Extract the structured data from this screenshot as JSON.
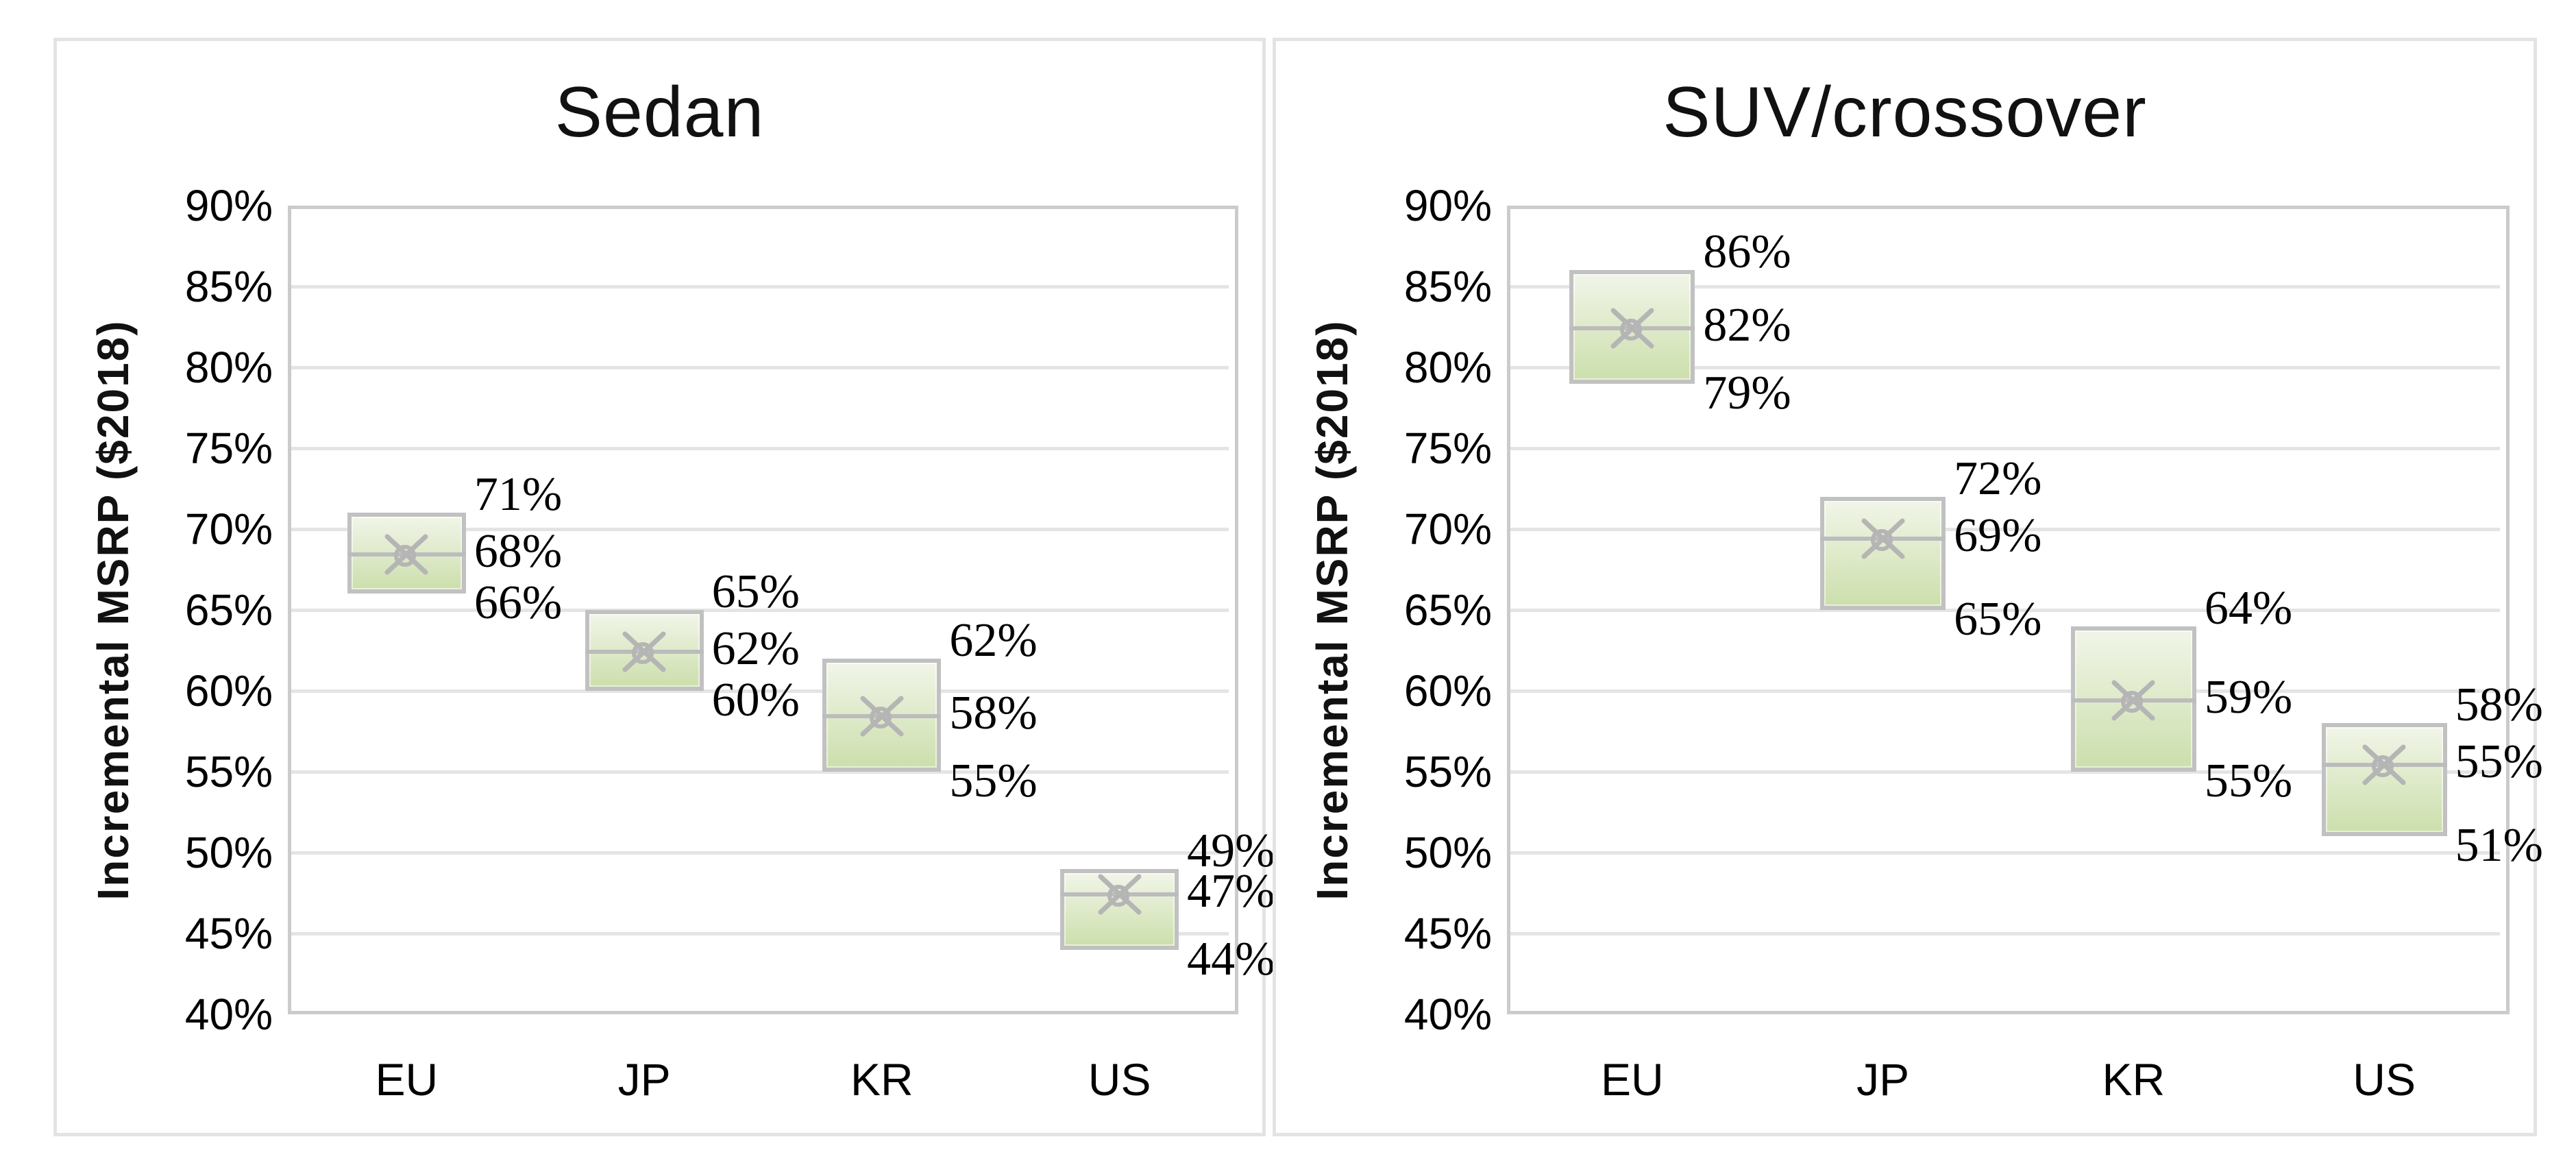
{
  "style": {
    "text_color": "#000000",
    "title_color": "#111111",
    "panel_border": "#e3e3e3",
    "plot_border": "#cbcbcb",
    "gridline": "#e4e4e4",
    "box_border": "#c1c1c1",
    "box_fill_top": "#f1f5e8",
    "box_fill_bottom": "#ccdfac",
    "median_line": "#bcbcbc",
    "mean_marker": "#b5b5b5"
  },
  "chart_data": [
    {
      "type": "box",
      "title": "Sedan",
      "xlabel": "",
      "ylabel": "Incremental MSRP ($2018)",
      "ylim": [
        40,
        90
      ],
      "ytick_step": 5,
      "ytick_labels": [
        "40%",
        "45%",
        "50%",
        "55%",
        "60%",
        "65%",
        "70%",
        "75%",
        "80%",
        "85%",
        "90%"
      ],
      "grid": true,
      "legend": "none",
      "categories": [
        "EU",
        "JP",
        "KR",
        "US"
      ],
      "series": [
        {
          "category": "EU",
          "max": 71,
          "mean": 68,
          "min": 66,
          "labels": {
            "max": "71%",
            "mean": "68%",
            "min": "66%"
          }
        },
        {
          "category": "JP",
          "max": 65,
          "mean": 62,
          "min": 60,
          "labels": {
            "max": "65%",
            "mean": "62%",
            "min": "60%"
          }
        },
        {
          "category": "KR",
          "max": 62,
          "mean": 58,
          "min": 55,
          "labels": {
            "max": "62%",
            "mean": "58%",
            "min": "55%"
          }
        },
        {
          "category": "US",
          "max": 49,
          "mean": 47,
          "min": 44,
          "labels": {
            "max": "49%",
            "mean": "47%",
            "min": "44%"
          }
        }
      ]
    },
    {
      "type": "box",
      "title": "SUV/crossover",
      "xlabel": "",
      "ylabel": "Incremental MSRP ($2018)",
      "ylim": [
        40,
        90
      ],
      "ytick_step": 5,
      "ytick_labels": [
        "40%",
        "45%",
        "50%",
        "55%",
        "60%",
        "65%",
        "70%",
        "75%",
        "80%",
        "85%",
        "90%"
      ],
      "grid": true,
      "legend": "none",
      "categories": [
        "EU",
        "JP",
        "KR",
        "US"
      ],
      "series": [
        {
          "category": "EU",
          "max": 86,
          "mean": 82,
          "min": 79,
          "labels": {
            "max": "86%",
            "mean": "82%",
            "min": "79%"
          }
        },
        {
          "category": "JP",
          "max": 72,
          "mean": 69,
          "min": 65,
          "labels": {
            "max": "72%",
            "mean": "69%",
            "min": "65%"
          }
        },
        {
          "category": "KR",
          "max": 64,
          "mean": 59,
          "min": 55,
          "labels": {
            "max": "64%",
            "mean": "59%",
            "min": "55%"
          }
        },
        {
          "category": "US",
          "max": 58,
          "mean": 55,
          "min": 51,
          "labels": {
            "max": "58%",
            "mean": "55%",
            "min": "51%"
          }
        }
      ]
    }
  ]
}
